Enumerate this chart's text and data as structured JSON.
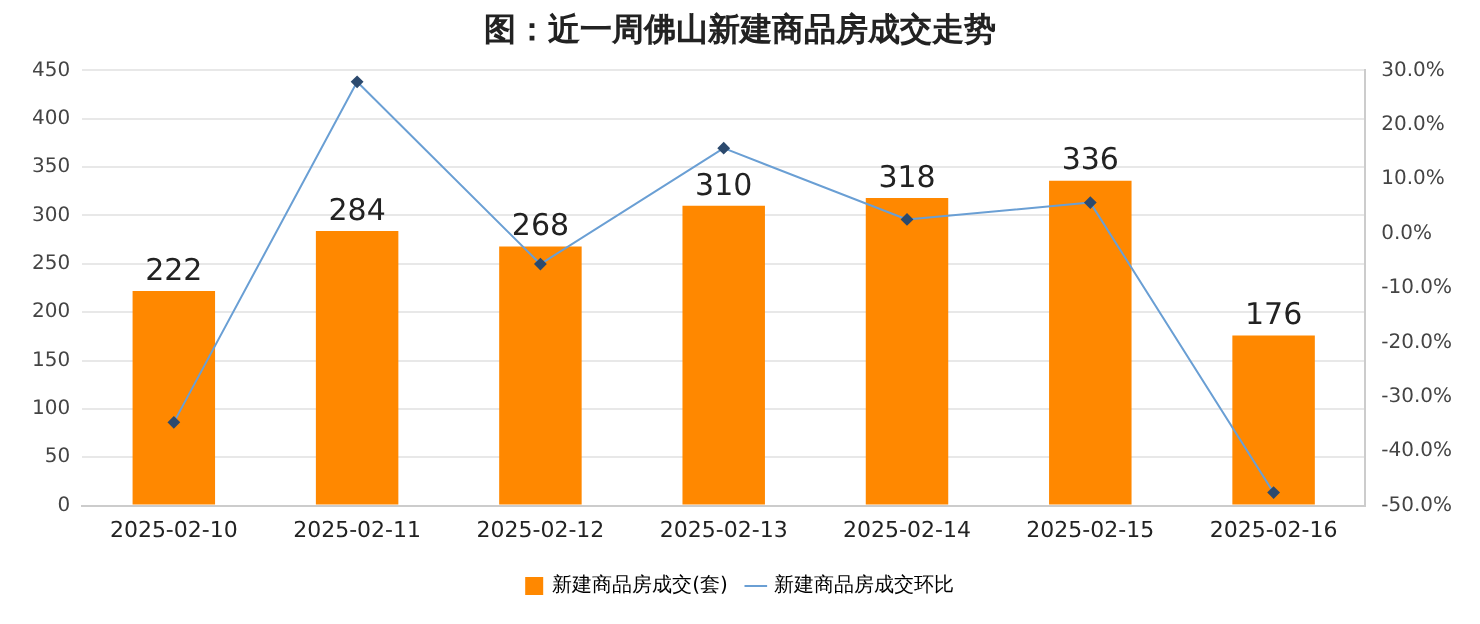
{
  "chart_data": {
    "type": "bar",
    "title": "图：近一周佛山新建商品房成交走势",
    "categories": [
      "2025-02-10",
      "2025-02-11",
      "2025-02-12",
      "2025-02-13",
      "2025-02-14",
      "2025-02-15",
      "2025-02-16"
    ],
    "series": [
      {
        "name": "新建商品房成交(套)",
        "color": "#ff8800",
        "values": [
          222,
          284,
          268,
          310,
          318,
          336,
          176
        ]
      },
      {
        "name": "新建商品房成交环比",
        "type": "line",
        "axis": "y2",
        "color": "#6a9fd4",
        "marker": "diamond",
        "values": [
          -34.7,
          27.9,
          -5.6,
          15.7,
          2.6,
          5.7,
          -47.6
        ]
      }
    ],
    "ylim": [
      0,
      450
    ],
    "yticks": [
      0,
      50,
      100,
      150,
      200,
      250,
      300,
      350,
      400,
      450
    ],
    "y2lim": [
      -50,
      30
    ],
    "y2ticks": [
      {
        "value": 30,
        "label": "30.0%"
      },
      {
        "value": 20,
        "label": "20.0%"
      },
      {
        "value": 10,
        "label": "10.0%"
      },
      {
        "value": 0,
        "label": "0.0%"
      },
      {
        "value": -10,
        "label": "-10.0%"
      },
      {
        "value": -20,
        "label": "-20.0%"
      },
      {
        "value": -30,
        "label": "-30.0%"
      },
      {
        "value": -40,
        "label": "-40.0%"
      },
      {
        "value": -50,
        "label": "-50.0%"
      }
    ],
    "value_labels": [
      "222",
      "284",
      "268",
      "310",
      "318",
      "336",
      "176"
    ],
    "grid": "y",
    "legend": "bottom"
  }
}
